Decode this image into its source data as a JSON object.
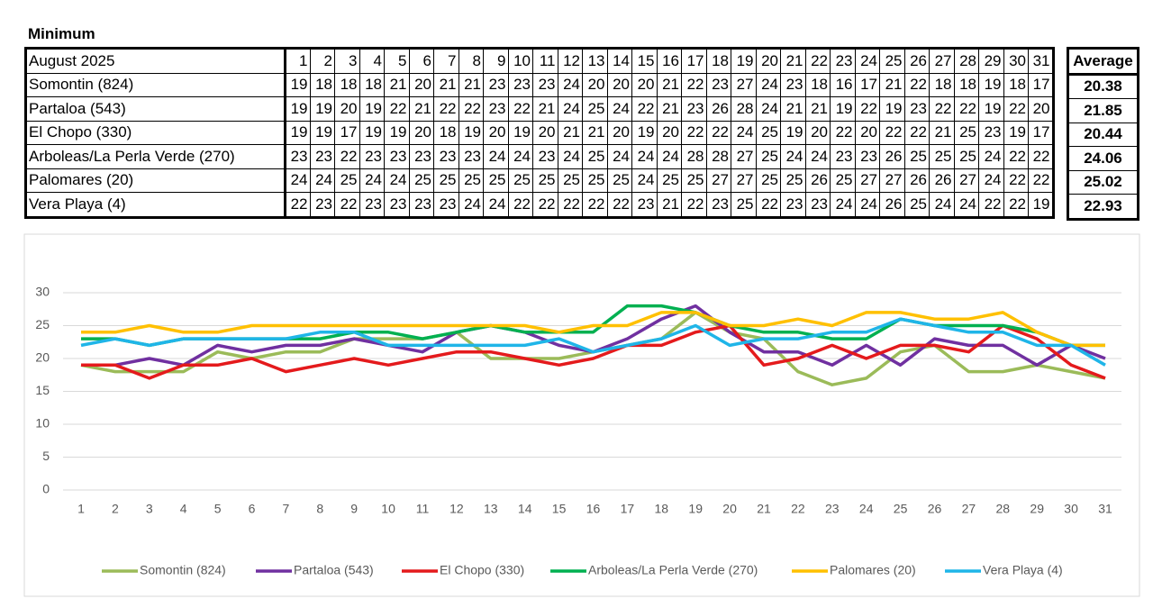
{
  "title": "Minimum",
  "table": {
    "header": {
      "label": "August 2025",
      "days": [
        1,
        2,
        3,
        4,
        5,
        6,
        7,
        8,
        9,
        10,
        11,
        12,
        13,
        14,
        15,
        16,
        17,
        18,
        19,
        20,
        21,
        22,
        23,
        24,
        25,
        26,
        27,
        28,
        29,
        30,
        31
      ],
      "average": "Average"
    },
    "rows": [
      {
        "name": "Somontin (824)",
        "values": [
          19,
          18,
          18,
          18,
          21,
          20,
          21,
          21,
          23,
          23,
          23,
          24,
          20,
          20,
          20,
          21,
          22,
          23,
          27,
          24,
          23,
          18,
          16,
          17,
          21,
          22,
          18,
          18,
          19,
          18,
          17
        ],
        "average": 20.38
      },
      {
        "name": "Partaloa (543)",
        "values": [
          19,
          19,
          20,
          19,
          22,
          21,
          22,
          22,
          23,
          22,
          21,
          24,
          25,
          24,
          22,
          21,
          23,
          26,
          28,
          24,
          21,
          21,
          19,
          22,
          19,
          23,
          22,
          22,
          19,
          22,
          20
        ],
        "average": 21.85
      },
      {
        "name": "El Chopo (330)",
        "values": [
          19,
          19,
          17,
          19,
          19,
          20,
          18,
          19,
          20,
          19,
          20,
          21,
          21,
          20,
          19,
          20,
          22,
          22,
          24,
          25,
          19,
          20,
          22,
          20,
          22,
          22,
          21,
          25,
          23,
          19,
          17
        ],
        "average": 20.44
      },
      {
        "name": "Arboleas/La Perla Verde (270)",
        "values": [
          23,
          23,
          22,
          23,
          23,
          23,
          23,
          23,
          24,
          24,
          23,
          24,
          25,
          24,
          24,
          24,
          28,
          28,
          27,
          25,
          24,
          24,
          23,
          23,
          26,
          25,
          25,
          25,
          24,
          22,
          22
        ],
        "average": 24.06
      },
      {
        "name": "Palomares (20)",
        "values": [
          24,
          24,
          25,
          24,
          24,
          25,
          25,
          25,
          25,
          25,
          25,
          25,
          25,
          25,
          24,
          25,
          25,
          27,
          27,
          25,
          25,
          26,
          25,
          27,
          27,
          26,
          26,
          27,
          24,
          22,
          22
        ],
        "average": 25.02
      },
      {
        "name": "Vera Playa (4)",
        "values": [
          22,
          23,
          22,
          23,
          23,
          23,
          23,
          24,
          24,
          22,
          22,
          22,
          22,
          22,
          23,
          21,
          22,
          23,
          25,
          22,
          23,
          23,
          24,
          24,
          26,
          25,
          24,
          24,
          22,
          22,
          19
        ],
        "average": 22.93
      }
    ]
  },
  "chart_data": {
    "type": "line",
    "categories": [
      "1",
      "2",
      "3",
      "4",
      "5",
      "6",
      "7",
      "8",
      "9",
      "10",
      "11",
      "12",
      "13",
      "14",
      "15",
      "16",
      "17",
      "18",
      "19",
      "20",
      "21",
      "22",
      "23",
      "24",
      "25",
      "26",
      "27",
      "28",
      "29",
      "30",
      "31"
    ],
    "ylim": [
      0,
      30
    ],
    "yticks": [
      0,
      5,
      10,
      15,
      20,
      25,
      30
    ],
    "grid": true,
    "legend": "bottom",
    "series": [
      {
        "name": "Somontin (824)",
        "color": "#9bbb59",
        "values": [
          19,
          18,
          18,
          18,
          21,
          20,
          21,
          21,
          23,
          23,
          23,
          24,
          20,
          20,
          20,
          21,
          22,
          23,
          27,
          24,
          23,
          18,
          16,
          17,
          21,
          22,
          18,
          18,
          19,
          18,
          17
        ]
      },
      {
        "name": "Partaloa (543)",
        "color": "#7030a0",
        "values": [
          19,
          19,
          20,
          19,
          22,
          21,
          22,
          22,
          23,
          22,
          21,
          24,
          25,
          24,
          22,
          21,
          23,
          26,
          28,
          24,
          21,
          21,
          19,
          22,
          19,
          23,
          22,
          22,
          19,
          22,
          20
        ]
      },
      {
        "name": "El Chopo (330)",
        "color": "#e41a1c",
        "values": [
          19,
          19,
          17,
          19,
          19,
          20,
          18,
          19,
          20,
          19,
          20,
          21,
          21,
          20,
          19,
          20,
          22,
          22,
          24,
          25,
          19,
          20,
          22,
          20,
          22,
          22,
          21,
          25,
          23,
          19,
          17
        ]
      },
      {
        "name": "Arboleas/La Perla Verde (270)",
        "color": "#00b050",
        "values": [
          23,
          23,
          22,
          23,
          23,
          23,
          23,
          23,
          24,
          24,
          23,
          24,
          25,
          24,
          24,
          24,
          28,
          28,
          27,
          25,
          24,
          24,
          23,
          23,
          26,
          25,
          25,
          25,
          24,
          22,
          22
        ]
      },
      {
        "name": "Palomares (20)",
        "color": "#ffc000",
        "values": [
          24,
          24,
          25,
          24,
          24,
          25,
          25,
          25,
          25,
          25,
          25,
          25,
          25,
          25,
          24,
          25,
          25,
          27,
          27,
          25,
          25,
          26,
          25,
          27,
          27,
          26,
          26,
          27,
          24,
          22,
          22
        ]
      },
      {
        "name": "Vera Playa (4)",
        "color": "#1fb5e8",
        "values": [
          22,
          23,
          22,
          23,
          23,
          23,
          23,
          24,
          24,
          22,
          22,
          22,
          22,
          22,
          23,
          21,
          22,
          23,
          25,
          22,
          23,
          23,
          24,
          24,
          26,
          25,
          24,
          24,
          22,
          22,
          19
        ]
      }
    ]
  }
}
